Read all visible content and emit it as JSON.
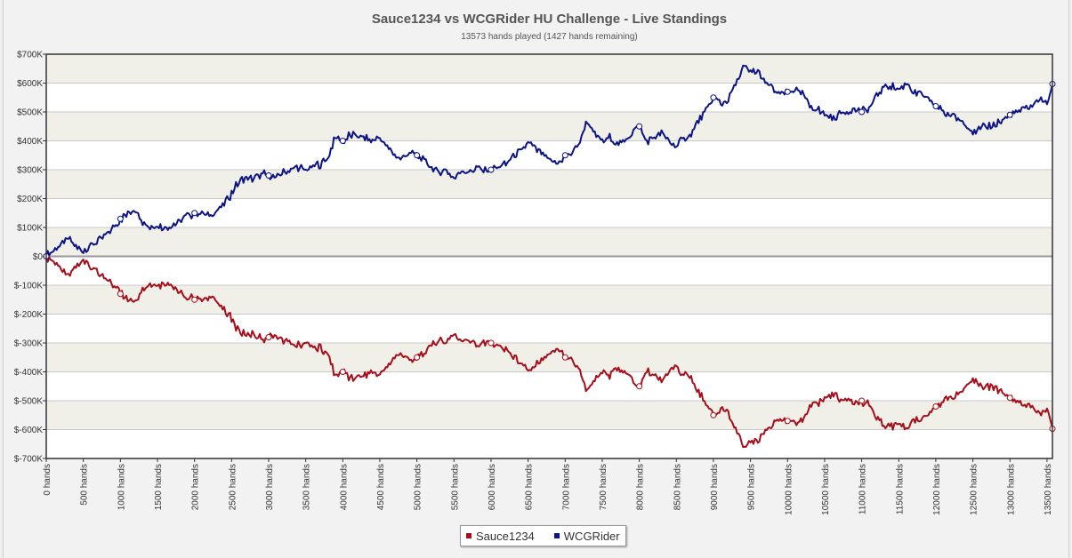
{
  "chart_data": {
    "type": "line",
    "title": "Sauce1234 vs WCGRider HU Challenge - Live Standings",
    "subtitle": "13573 hands played (1427 hands remaining)",
    "xlabel": "",
    "ylabel": "",
    "xlim": [
      0,
      13573
    ],
    "ylim": [
      -700000,
      700000
    ],
    "y_ticks": [
      700000,
      600000,
      500000,
      400000,
      300000,
      200000,
      100000,
      0,
      -100000,
      -200000,
      -300000,
      -400000,
      -500000,
      -600000,
      -700000
    ],
    "y_tick_labels": [
      "$700K",
      "$600K",
      "$500K",
      "$400K",
      "$300K",
      "$200K",
      "$100K",
      "$0",
      "$-100K",
      "$-200K",
      "$-300K",
      "$-400K",
      "$-500K",
      "$-600K",
      "$-700K"
    ],
    "x_ticks": [
      0,
      500,
      1000,
      1500,
      2000,
      2500,
      3000,
      3500,
      4000,
      4500,
      5000,
      5500,
      6000,
      6500,
      7000,
      7500,
      8000,
      8500,
      9000,
      9500,
      10000,
      10500,
      11000,
      11500,
      12000,
      12500,
      13000,
      13500
    ],
    "x_tick_labels": [
      "0 hands",
      "500 hands",
      "1000 hands",
      "1500 hands",
      "2000 hands",
      "2500 hands",
      "3000 hands",
      "3500 hands",
      "4000 hands",
      "4500 hands",
      "5000 hands",
      "5500 hands",
      "6000 hands",
      "6500 hands",
      "7000 hands",
      "7500 hands",
      "8000 hands",
      "8500 hands",
      "9000 hands",
      "9500 hands",
      "10000 hands",
      "10500 hands",
      "11000 hands",
      "11500 hands",
      "12000 hands",
      "12500 hands",
      "13000 hands",
      "13500 hands"
    ],
    "grid": true,
    "legend_position": "bottom-center",
    "x": [
      0,
      100,
      200,
      300,
      400,
      500,
      600,
      700,
      800,
      900,
      1000,
      1100,
      1200,
      1300,
      1400,
      1500,
      1600,
      1700,
      1800,
      1900,
      2000,
      2100,
      2200,
      2300,
      2400,
      2500,
      2600,
      2700,
      2800,
      2900,
      3000,
      3100,
      3200,
      3300,
      3400,
      3500,
      3600,
      3700,
      3800,
      3900,
      4000,
      4100,
      4200,
      4300,
      4400,
      4500,
      4600,
      4700,
      4800,
      4900,
      5000,
      5100,
      5200,
      5300,
      5400,
      5500,
      5600,
      5700,
      5800,
      5900,
      6000,
      6100,
      6200,
      6300,
      6400,
      6500,
      6600,
      6700,
      6800,
      6900,
      7000,
      7100,
      7200,
      7300,
      7400,
      7500,
      7600,
      7700,
      7800,
      7900,
      8000,
      8100,
      8200,
      8300,
      8400,
      8500,
      8600,
      8700,
      8800,
      8900,
      9000,
      9100,
      9200,
      9300,
      9400,
      9500,
      9600,
      9700,
      9800,
      9900,
      10000,
      10100,
      10200,
      10300,
      10400,
      10500,
      10600,
      10700,
      10800,
      10900,
      11000,
      11100,
      11200,
      11300,
      11400,
      11500,
      11600,
      11700,
      11800,
      11900,
      12000,
      12100,
      12200,
      12300,
      12400,
      12500,
      12600,
      12700,
      12800,
      12900,
      13000,
      13100,
      13200,
      13300,
      13400,
      13500,
      13573
    ],
    "series": [
      {
        "name": "Sauce1234",
        "color": "#a50f1c",
        "values": [
          0,
          -20000,
          -40000,
          -60000,
          -30000,
          -20000,
          -40000,
          -55000,
          -70000,
          -100000,
          -130000,
          -145000,
          -165000,
          -120000,
          -100000,
          -105000,
          -100000,
          -110000,
          -120000,
          -140000,
          -150000,
          -150000,
          -140000,
          -155000,
          -180000,
          -220000,
          -260000,
          -270000,
          -270000,
          -285000,
          -280000,
          -270000,
          -290000,
          -300000,
          -310000,
          -300000,
          -310000,
          -320000,
          -340000,
          -410000,
          -400000,
          -420000,
          -420000,
          -410000,
          -400000,
          -410000,
          -380000,
          -350000,
          -340000,
          -360000,
          -350000,
          -330000,
          -310000,
          -290000,
          -300000,
          -270000,
          -300000,
          -290000,
          -310000,
          -300000,
          -300000,
          -310000,
          -320000,
          -350000,
          -360000,
          -400000,
          -370000,
          -350000,
          -330000,
          -320000,
          -350000,
          -360000,
          -400000,
          -470000,
          -420000,
          -400000,
          -410000,
          -390000,
          -400000,
          -430000,
          -450000,
          -400000,
          -410000,
          -430000,
          -400000,
          -380000,
          -410000,
          -420000,
          -470000,
          -500000,
          -550000,
          -530000,
          -540000,
          -600000,
          -650000,
          -640000,
          -640000,
          -600000,
          -580000,
          -560000,
          -570000,
          -580000,
          -560000,
          -520000,
          -510000,
          -490000,
          -480000,
          -490000,
          -500000,
          -510000,
          -500000,
          -510000,
          -550000,
          -590000,
          -590000,
          -580000,
          -600000,
          -570000,
          -560000,
          -540000,
          -520000,
          -500000,
          -490000,
          -480000,
          -460000,
          -430000,
          -440000,
          -450000,
          -460000,
          -470000,
          -490000,
          -500000,
          -510000,
          -520000,
          -550000,
          -520000,
          -597000
        ]
      },
      {
        "name": "WCGRider",
        "color": "#0d1483",
        "values": [
          0,
          20000,
          40000,
          60000,
          30000,
          20000,
          40000,
          55000,
          70000,
          100000,
          130000,
          145000,
          165000,
          120000,
          100000,
          105000,
          100000,
          110000,
          120000,
          140000,
          150000,
          150000,
          140000,
          155000,
          180000,
          220000,
          260000,
          270000,
          270000,
          285000,
          280000,
          270000,
          290000,
          300000,
          310000,
          300000,
          310000,
          320000,
          340000,
          410000,
          400000,
          420000,
          420000,
          410000,
          400000,
          410000,
          380000,
          350000,
          340000,
          360000,
          350000,
          330000,
          310000,
          290000,
          300000,
          270000,
          300000,
          290000,
          310000,
          300000,
          300000,
          310000,
          320000,
          350000,
          360000,
          400000,
          370000,
          350000,
          330000,
          320000,
          350000,
          360000,
          400000,
          470000,
          420000,
          400000,
          410000,
          390000,
          400000,
          430000,
          450000,
          400000,
          410000,
          430000,
          400000,
          380000,
          410000,
          420000,
          470000,
          500000,
          550000,
          530000,
          540000,
          600000,
          650000,
          640000,
          640000,
          600000,
          580000,
          560000,
          570000,
          580000,
          560000,
          520000,
          510000,
          490000,
          480000,
          490000,
          500000,
          510000,
          500000,
          510000,
          550000,
          590000,
          590000,
          580000,
          600000,
          570000,
          560000,
          540000,
          520000,
          500000,
          490000,
          480000,
          460000,
          430000,
          440000,
          450000,
          460000,
          470000,
          490000,
          500000,
          510000,
          520000,
          550000,
          520000,
          597000
        ]
      }
    ],
    "markers_x": [
      0,
      1000,
      2000,
      3000,
      4000,
      5000,
      6000,
      7000,
      8000,
      9000,
      10000,
      11000,
      12000,
      13000,
      13573
    ]
  }
}
